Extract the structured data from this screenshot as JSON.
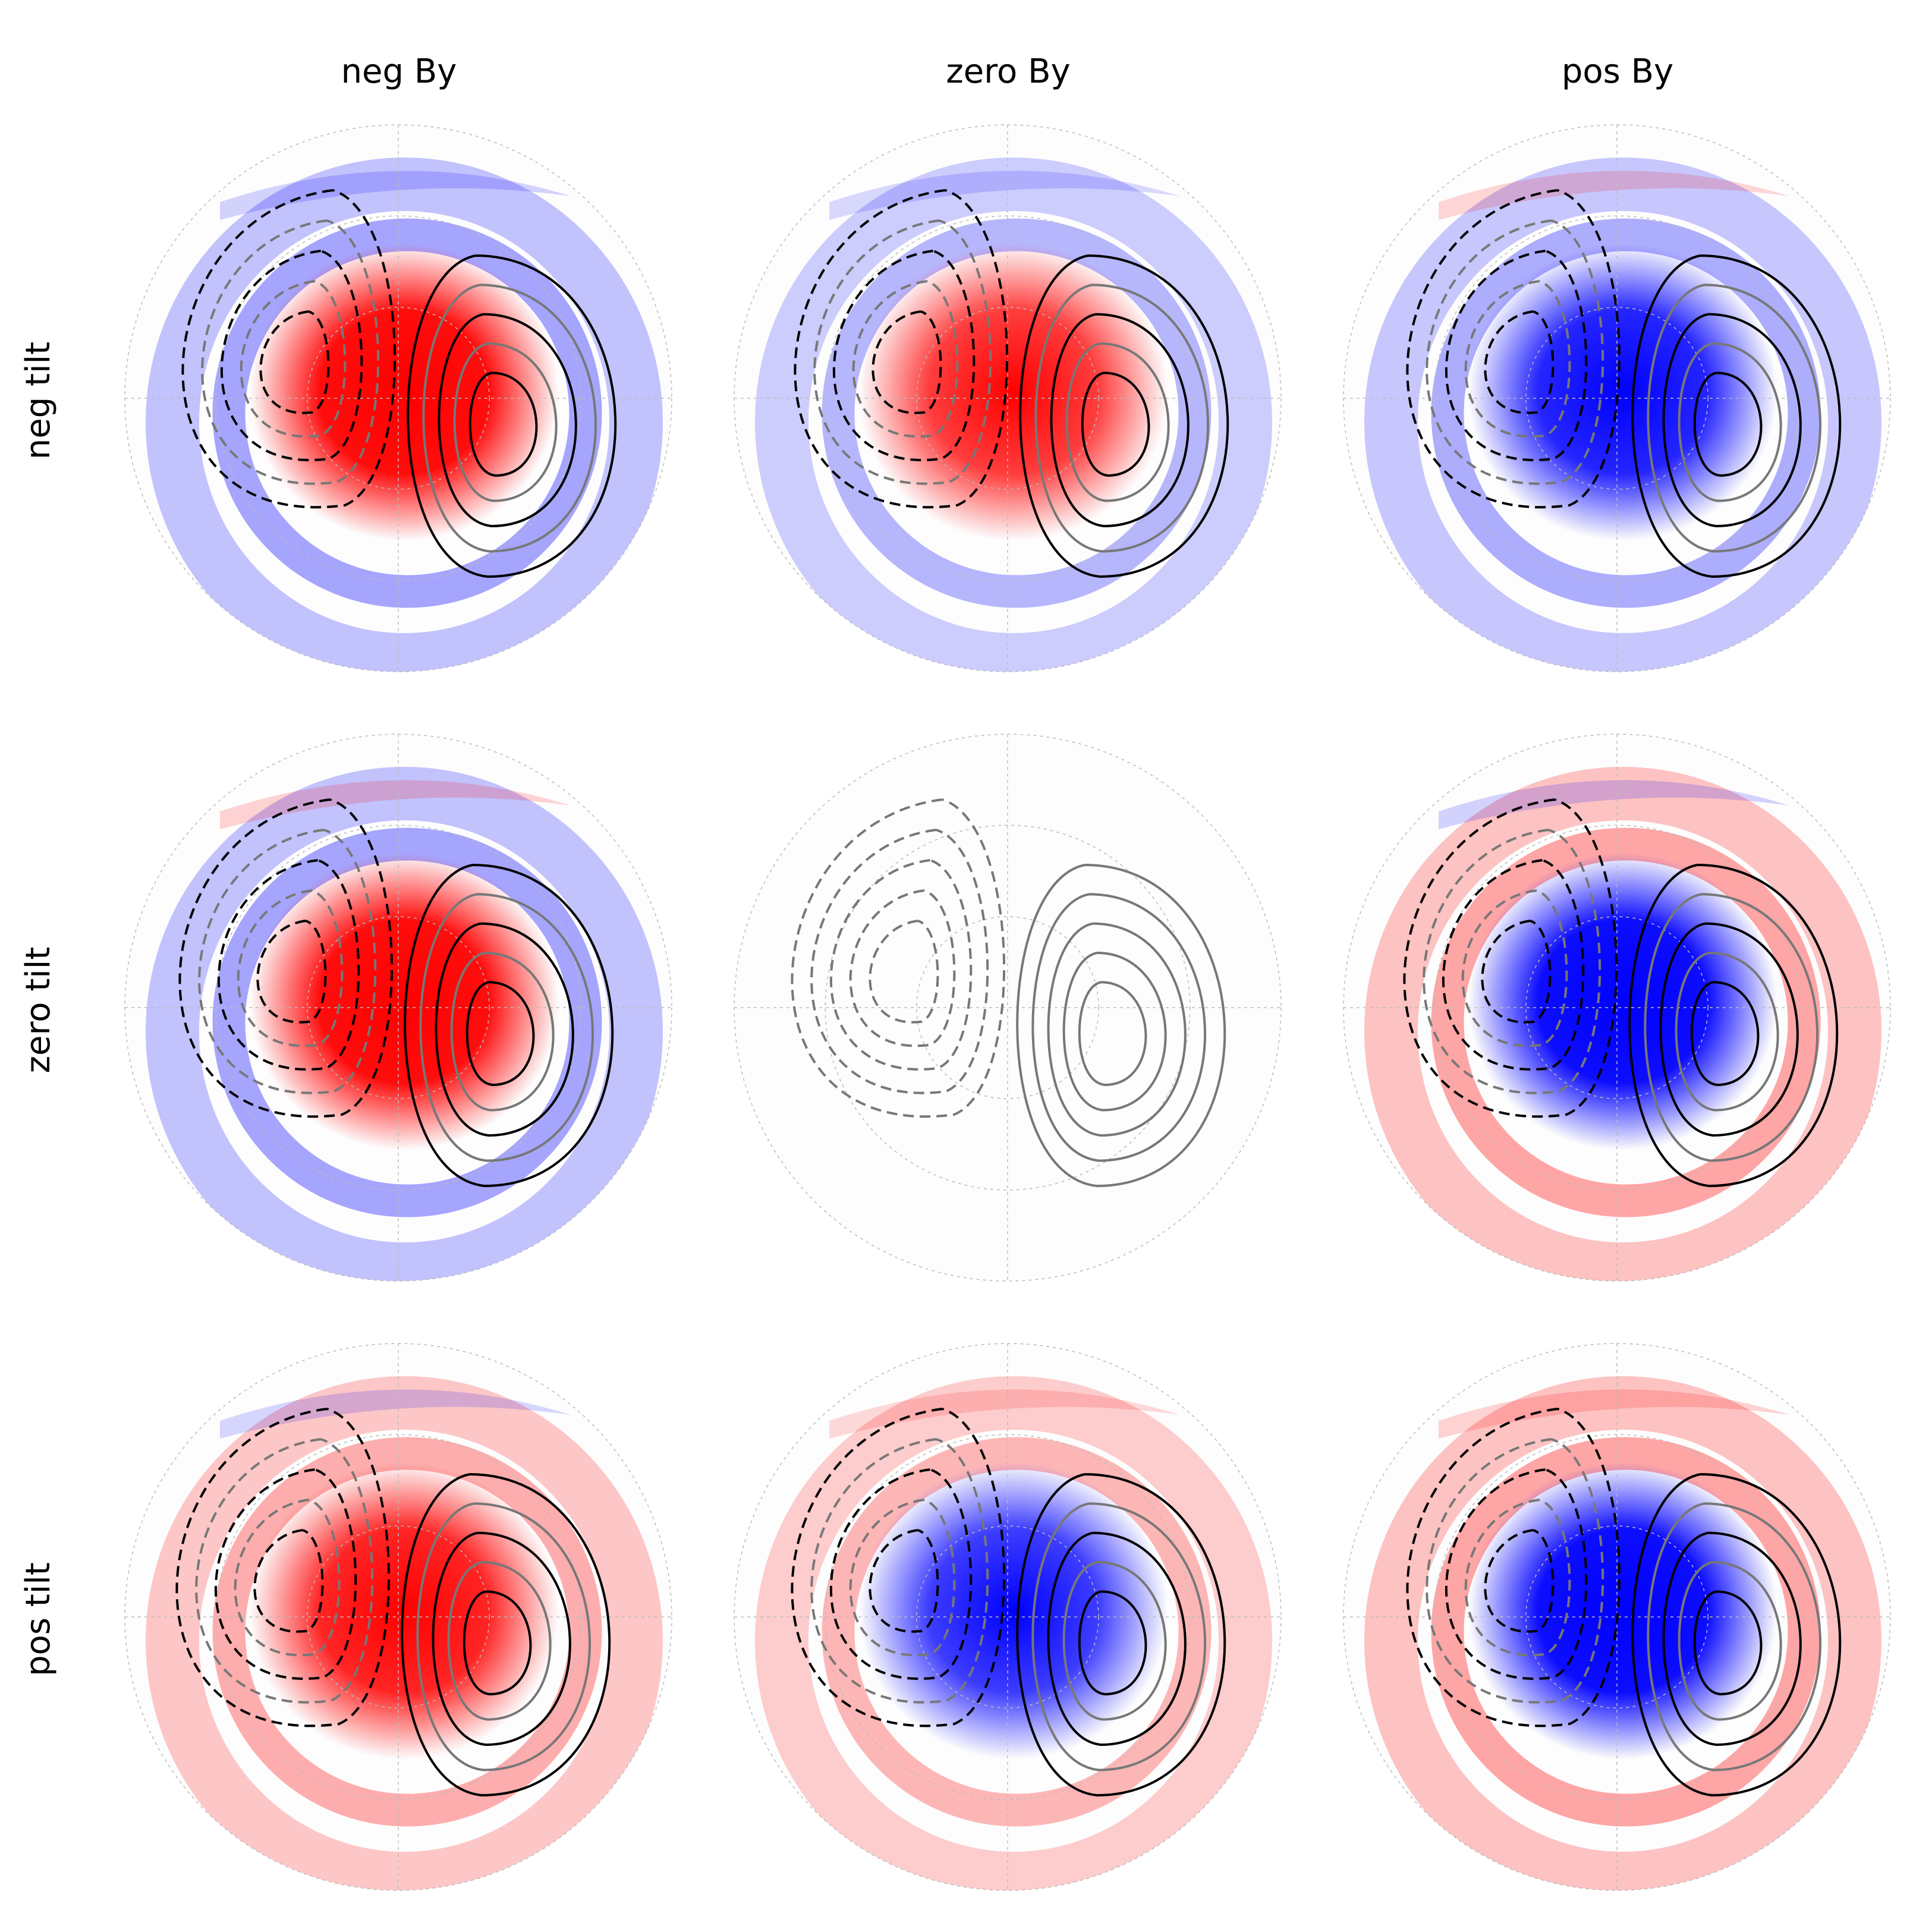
{
  "columns": [
    "neg By",
    "zero By",
    "pos By"
  ],
  "rows": [
    "neg tilt",
    "zero tilt",
    "pos tilt"
  ],
  "colors": {
    "positive": "#ff0000",
    "negative": "#0000ff",
    "contour_a": "#000000",
    "contour_b": "#777777",
    "grid": "#bbbbbb"
  },
  "panels": [
    {
      "name": "neg-tilt-neg-By",
      "center_sign": 1,
      "ring_sign": -1,
      "band_sign": -1,
      "strength": 1.0,
      "contour_shift": 0.0
    },
    {
      "name": "neg-tilt-zero-By",
      "center_sign": 1,
      "ring_sign": -1,
      "band_sign": -1,
      "strength": 0.8,
      "contour_shift": 0.05
    },
    {
      "name": "neg-tilt-pos-By",
      "center_sign": -1,
      "ring_sign": -1,
      "band_sign": 1,
      "strength": 0.9,
      "contour_shift": 0.1
    },
    {
      "name": "zero-tilt-neg-By",
      "center_sign": 1,
      "ring_sign": -1,
      "band_sign": 1,
      "strength": 1.0,
      "contour_shift": -0.05
    },
    {
      "name": "zero-tilt-zero-By",
      "center_sign": 0,
      "ring_sign": 0,
      "band_sign": 0,
      "strength": 0.0,
      "contour_shift": 0.0
    },
    {
      "name": "zero-tilt-pos-By",
      "center_sign": -1,
      "ring_sign": 1,
      "band_sign": -1,
      "strength": 1.0,
      "contour_shift": 0.05
    },
    {
      "name": "pos-tilt-neg-By",
      "center_sign": 1,
      "ring_sign": 1,
      "band_sign": -1,
      "strength": 0.9,
      "contour_shift": -0.1
    },
    {
      "name": "pos-tilt-zero-By",
      "center_sign": -1,
      "ring_sign": 1,
      "band_sign": 1,
      "strength": 0.8,
      "contour_shift": 0.0
    },
    {
      "name": "pos-tilt-pos-By",
      "center_sign": -1,
      "ring_sign": 1,
      "band_sign": 1,
      "strength": 1.0,
      "contour_shift": 0.1
    }
  ]
}
